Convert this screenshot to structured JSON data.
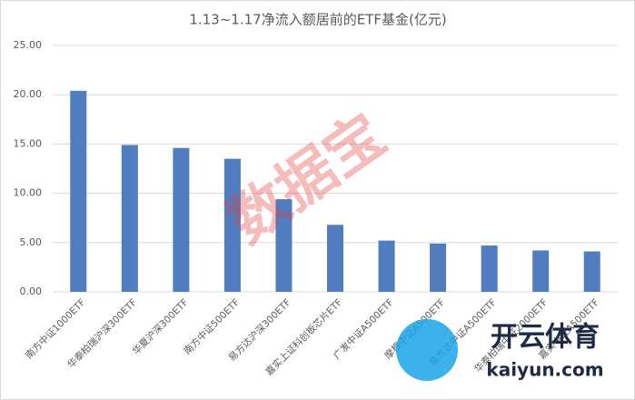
{
  "chart_data": {
    "type": "bar",
    "title": "1.13~1.17净流入额居前的ETF基金(亿元)",
    "categories": [
      "南方中证1000ETF",
      "华泰柏瑞沪深300ETF",
      "华夏沪深300ETF",
      "南方中证500ETF",
      "易方达沪深300ETF",
      "嘉实上证科创板芯片ETF",
      "广发中证A500ETF",
      "摩根中证A500ETF",
      "易方达中证A500ETF",
      "华泰柏瑞中证2000ETF",
      "嘉实中证A500ETF"
    ],
    "values": [
      20.4,
      14.9,
      14.6,
      13.5,
      9.4,
      6.8,
      5.2,
      4.9,
      4.7,
      4.2,
      4.1
    ],
    "color": "#4f7dbf",
    "ylim": [
      0,
      25
    ],
    "yticks": [
      {
        "value": 0,
        "label": "0.00"
      },
      {
        "value": 5,
        "label": "5.00"
      },
      {
        "value": 10,
        "label": "10.00"
      },
      {
        "value": 15,
        "label": "15.00"
      },
      {
        "value": 20,
        "label": "20.00"
      },
      {
        "value": 25,
        "label": "25.00"
      }
    ],
    "grid": true,
    "watermark": "数据宝",
    "logo_text": "开云体育",
    "logo_url": "kaiyun.com"
  }
}
